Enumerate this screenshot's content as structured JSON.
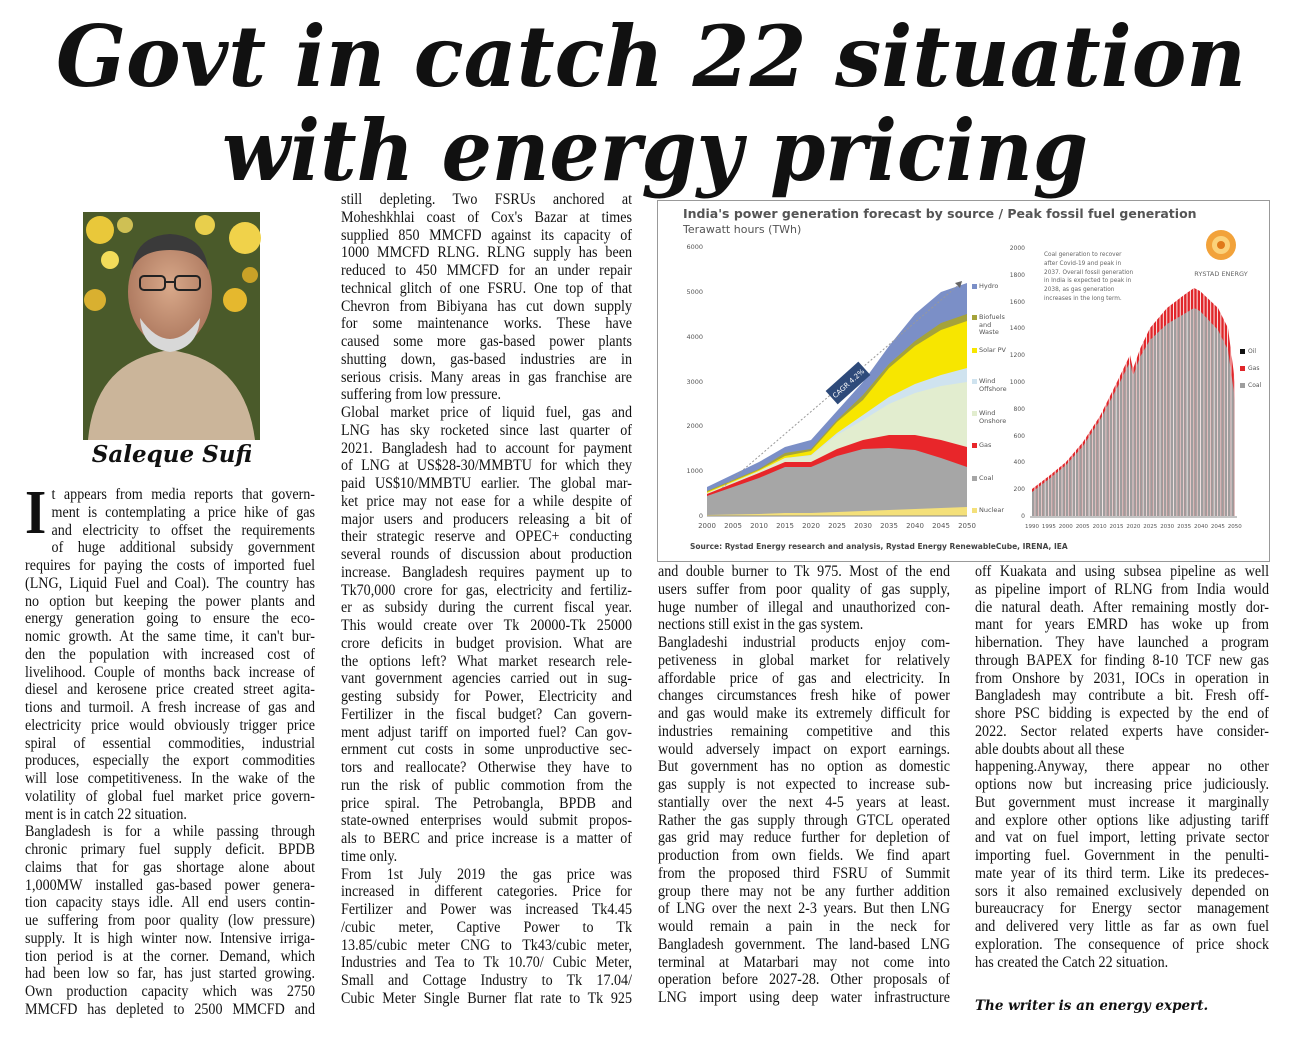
{
  "headline": [
    "Govt in catch 22 situation",
    "with energy pricing"
  ],
  "byline": "Saleque Sufi",
  "columns": [
    {
      "dropcap": "I",
      "paragraphs": [
        {
          "lines": [
            "t appears from media reports that govern-",
            "ment is contemplating a price hike of gas",
            "and electricity to offset the requirements",
            "of huge additional subsidy government",
            "requires for paying the costs of imported fuel",
            "(LNG, Liquid Fuel and Coal). The country has",
            "no option but keeping the power plants and",
            "energy generation going to ensure the eco-",
            "nomic growth. At the same time, it can't bur-",
            "den the population with increased cost of",
            "livelihood. Couple of months back increase of",
            "diesel and kerosene price created street agita-",
            "tions and turmoil. A fresh increase of gas and",
            "electricity price would obviously trigger price",
            "spiral of essential commodities, industrial",
            "produces, especially the export commodities",
            "will lose competitiveness. In the wake of the",
            "volatility of global fuel market price govern-",
            "ment is in catch 22 situation."
          ]
        },
        {
          "lines": [
            "Bangladesh is for a while passing through",
            "chronic primary fuel supply deficit. BPDB",
            "claims that for gas shortage alone about",
            "1,000MW installed gas-based power genera-",
            "tion capacity stays idle. All end users contin-",
            "ue suffering from poor quality (low pressure)",
            "supply. It is high winter now. Intensive irriga-",
            "tion period is at the corner. Demand, which",
            "had been low so far, has just started growing.",
            "Own production capacity which was 2750",
            "MMCFD has depleted to 2500 MMCFD and"
          ]
        }
      ]
    },
    {
      "paragraphs": [
        {
          "lines": [
            "still depleting. Two FSRUs anchored at",
            "Moheshkhlai coast of Cox's Bazar at times",
            "supplied 850 MMCFD against its capacity of",
            "1000 MMCFD RLNG. RLNG supply has been",
            "reduced to 450 MMCFD for an under repair",
            "technical glitch of one FSRU. One top of that",
            "Chevron from Bibiyana has cut down supply",
            "for some maintenance works. These have",
            "caused some more gas-based power plants",
            "shutting down, gas-based industries are in",
            "serious crisis. Many areas in gas franchise are",
            "suffering from low pressure."
          ]
        },
        {
          "lines": [
            "Global market price of liquid fuel, gas and",
            "LNG has sky rocketed since last quarter of",
            "2021. Bangladesh had to account for payment",
            "of LNG at US$28-30/MMBTU for which they",
            "paid US$10/MMBTU earlier. The global mar-",
            "ket price may not ease for a while despite of",
            "major users and producers releasing a bit of",
            "their strategic reserve and OPEC+ conducting",
            "several rounds of discussion about production",
            "increase. Bangladesh requires payment up to",
            "Tk70,000 crore for gas, electricity and fertiliz-",
            "er as subsidy during the current fiscal year.",
            "This would create over Tk 20000-Tk 25000",
            "crore deficits in budget provision. What are",
            "the options left? What market research rele-",
            "vant government agencies carried out in sug-",
            "gesting subsidy for Power, Electricity and",
            "Fertilizer in the fiscal budget? Can govern-",
            "ment adjust tariff on imported fuel? Can gov-",
            "ernment cut costs in some unproductive sec-",
            "tors and reallocate? Otherwise they have to",
            "run the risk of public commotion from the",
            "price spiral. The Petrobangla, BPDB and",
            "state-owned enterprises would submit propos-",
            "als to BERC and price increase is a matter of",
            "time only."
          ]
        },
        {
          "lines": [
            "From 1st July 2019 the gas price was",
            "increased in different categories. Price for",
            "Fertilizer and Power was increased Tk4.45",
            "/cubic meter, Captive Power to Tk",
            "13.85/cubic meter CNG to Tk43/cubic meter,",
            "Industries and Tea to Tk 10.70/ Cubic Meter,",
            "Small and Cottage Industry to Tk 17.04/",
            "Cubic Meter Single Burner flat rate to Tk 925"
          ]
        }
      ]
    },
    {
      "paragraphs": [
        {
          "lines": [
            "and double burner to Tk 975. Most of the end",
            "users suffer from poor quality of gas supply,",
            "huge number of illegal and unauthorized con-",
            "nections still exist in the gas system."
          ]
        },
        {
          "lines": [
            "Bangladeshi industrial products enjoy com-",
            "petiveness in global market for relatively",
            "affordable price of gas and electricity. In",
            "changes circumstances fresh hike of power",
            "and gas would make its extremely difficult for",
            "industries remaining competitive and this",
            "would adversely impact on export earnings.",
            "But government has no option as domestic",
            "gas supply is not expected to increase sub-",
            "stantially over the next 4-5 years at least.",
            "Rather the gas supply through GTCL operated",
            "gas grid may reduce further for depletion of",
            "production from own fields. We find apart",
            "from the proposed third FSRU of Summit",
            "group there may not be any further addition",
            "of LNG over the next 2-3 years. But then LNG",
            "would remain a pain in the neck for",
            "Bangladesh government. The land-based LNG",
            "terminal at Matarbari may not come into",
            "operation before 2027-28. Other proposals of",
            "LNG import using deep water infrastructure"
          ]
        }
      ]
    },
    {
      "paragraphs": [
        {
          "lines": [
            "off Kuakata and using subsea pipeline as well",
            "as pipeline import of RLNG from India would",
            "die natural death. After remaining mostly dor-",
            "mant for years EMRD has woke up from",
            "hibernation. They have launched a program",
            "through BAPEX for finding 8-10 TCF new gas",
            "from Onshore by 2031, IOCs in operation in",
            "Bangladesh may contribute a bit. Fresh off-",
            "shore PSC bidding is expected by the end of",
            "2022. Sector related experts have consider-",
            "able doubts about all these"
          ]
        },
        {
          "lines": [
            "happening.Anyway, there appear no other",
            "options now but increasing price judiciously.",
            "But government must increase it marginally",
            "and explore other options like adjusting tariff",
            "and vat on fuel import, letting private sector",
            "importing fuel. Government in the penulti-",
            "mate year of its third term. Like its predeces-",
            "sors it also remained exclusively depended on",
            "bureaucracy for Energy sector management",
            "and delivered very little as far as own fuel",
            "exploration. The consequence of price shock",
            "has created the Catch 22 situation."
          ]
        }
      ]
    }
  ],
  "footer": "The writer is an energy expert.",
  "figure": {
    "title": "India's power generation forecast by source / Peak fossil fuel generation",
    "subtitle": "Terawatt hours (TWh)",
    "left_yticks": [
      0,
      1000,
      2000,
      3000,
      4000,
      5000,
      6000
    ],
    "left_xticks": [
      2000,
      2005,
      2010,
      2015,
      2020,
      2025,
      2030,
      2035,
      2040,
      2045,
      2050
    ],
    "left_legend": [
      "Hydro",
      "Biofuels and Waste",
      "Solar PV",
      "Wind Offshore",
      "Wind Onshore",
      "Gas",
      "Coal",
      "Nuclear"
    ],
    "annotation": "CAGR 4.2%",
    "right_yticks": [
      0,
      200,
      400,
      600,
      800,
      1000,
      1200,
      1400,
      1600,
      1800,
      2000
    ],
    "right_xticks": [
      1990,
      1995,
      2000,
      2005,
      2010,
      2015,
      2020,
      2025,
      2030,
      2035,
      2040,
      2045,
      2050
    ],
    "right_note": "Coal generation to recover after Covid-19 and peak in 2037. Overall fossil generation in India is expected to peak in 2038, as gas generation increases in the long term.",
    "right_legend": [
      "Oil",
      "Gas",
      "Coal"
    ],
    "logo": "RYSTAD ENERGY",
    "source": "Source: Rystad Energy research and analysis, Rystad Energy RenewableCube, IRENA, IEA"
  }
}
